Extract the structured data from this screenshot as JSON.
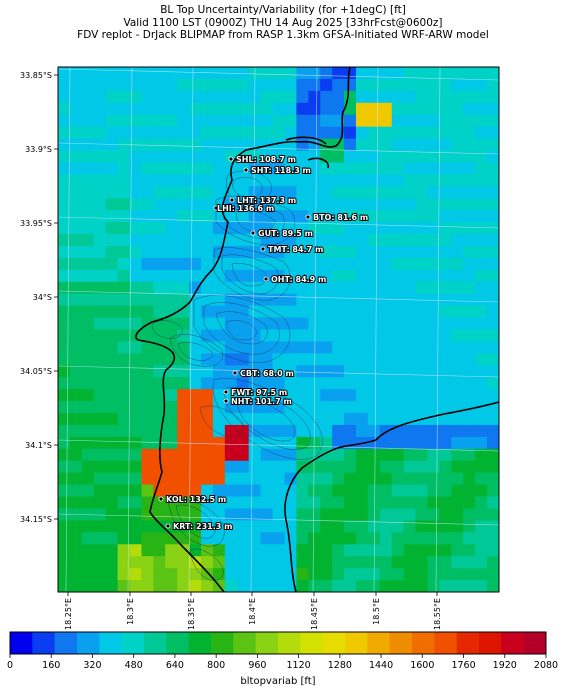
{
  "title": {
    "line1": "BL Top Uncertainty/Variability (for +1degC) [ft]",
    "line2": "Valid 1100 LST (0900Z) THU 14 Aug 2025 [33hrFcst@0600z]",
    "line3": "FDV replot - DrJack BLIPMAP from RASP 1.3km GFSA-Initiated WRF-ARW model"
  },
  "axes": {
    "lat_ticks": [
      "33.85°S",
      "33.9°S",
      "33.95°S",
      "34°S",
      "34.05°S",
      "34.1°S",
      "34.15°S"
    ],
    "lon_ticks": [
      "18.25°E",
      "18.3°E",
      "18.35°E",
      "18.4°E",
      "18.45°E",
      "18.5°E",
      "18.55°E"
    ]
  },
  "stations": [
    {
      "code": "SHL",
      "text": "SHL: 108.7 m"
    },
    {
      "code": "SHT",
      "text": "SHT: 118.3 m"
    },
    {
      "code": "LHT",
      "text": "LHT: 137.3 m"
    },
    {
      "code": "LHI",
      "text": "LHI: 136.6 m"
    },
    {
      "code": "BTO",
      "text": "BTO: 81.6 m"
    },
    {
      "code": "GUT",
      "text": "GUT: 89.5 m"
    },
    {
      "code": "TMT",
      "text": "TMT: 84.7 m"
    },
    {
      "code": "OHT",
      "text": "OHT: 84.9 m"
    },
    {
      "code": "CBT",
      "text": "CBT: 68.0 m"
    },
    {
      "code": "FWT",
      "text": "FWT: 97.5 m"
    },
    {
      "code": "NHT",
      "text": "NHT: 101.7 m"
    },
    {
      "code": "KOL",
      "text": "KOL: 132.5 m"
    },
    {
      "code": "KRT",
      "text": "KRT: 231.3 m"
    }
  ],
  "colorbar": {
    "label": "bltopvariab [ft]",
    "ticks": [
      "0",
      "160",
      "320",
      "480",
      "640",
      "800",
      "960",
      "1120",
      "1280",
      "1440",
      "1600",
      "1760",
      "1920",
      "2080"
    ],
    "colors": [
      "#0000ee",
      "#0a3cf0",
      "#0f78f0",
      "#0aa0f0",
      "#00c8e6",
      "#00d2c8",
      "#00c896",
      "#00be64",
      "#00b432",
      "#28b414",
      "#5ac314",
      "#8cd214",
      "#b4dc0a",
      "#d2e100",
      "#e6dc00",
      "#f0c800",
      "#f0aa00",
      "#f08c00",
      "#f06e00",
      "#f05000",
      "#e62800",
      "#dc1400",
      "#c8001e",
      "#b40028"
    ]
  }
}
